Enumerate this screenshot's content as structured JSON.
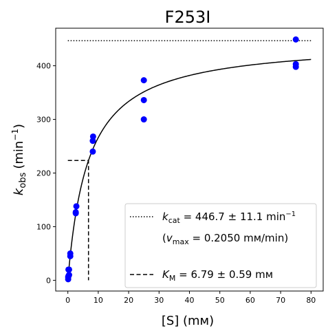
{
  "chart_data": {
    "type": "scatter",
    "title": "F253I",
    "xlabel": "[S] (mм)",
    "ylabel_main": "k",
    "ylabel_sub": "obs",
    "ylabel_unit": "(min",
    "ylabel_unit_sup": "−1",
    "ylabel_unit_close": ")",
    "xlim": [
      -4,
      84
    ],
    "ylim": [
      -20,
      470
    ],
    "xticks": [
      0,
      10,
      20,
      30,
      40,
      50,
      60,
      70,
      80
    ],
    "yticks": [
      0,
      100,
      200,
      300,
      400
    ],
    "grid": false,
    "legend_position": "lower-right",
    "colors": {
      "points": "#0000ff",
      "fit": "#000000"
    },
    "points": {
      "x": [
        0.1,
        0.1,
        0.2,
        0.2,
        0.4,
        0.4,
        0.8,
        0.8,
        2.6,
        2.6,
        2.8,
        8.2,
        8.2,
        8.3,
        25,
        25,
        25,
        75,
        75,
        75
      ],
      "y": [
        2,
        6,
        8,
        20,
        10,
        20,
        45,
        50,
        125,
        127,
        138,
        240,
        260,
        268,
        300,
        336,
        373,
        398,
        403,
        449
      ]
    },
    "fit": {
      "model": "michaelis-menten",
      "kcat": 446.7,
      "km": 6.79,
      "x_range": [
        0.05,
        80
      ]
    },
    "kcat_line": {
      "y": 446.7,
      "x_range": [
        0,
        80
      ]
    },
    "km_line": {
      "x": 6.79,
      "y_half": 223.35
    },
    "legend": {
      "kcat_symbol": "k",
      "kcat_sub": "cat",
      "kcat_value": " = 446.7 ± 11.1 min",
      "kcat_unit_sup": "−1",
      "vmax_open": "(",
      "vmax_symbol": "v",
      "vmax_sub": "max",
      "vmax_value": " = 0.2050 mм/min)",
      "km_symbol": "K",
      "km_sub": "M",
      "km_value": " = 6.79 ± 0.59 mм"
    }
  }
}
